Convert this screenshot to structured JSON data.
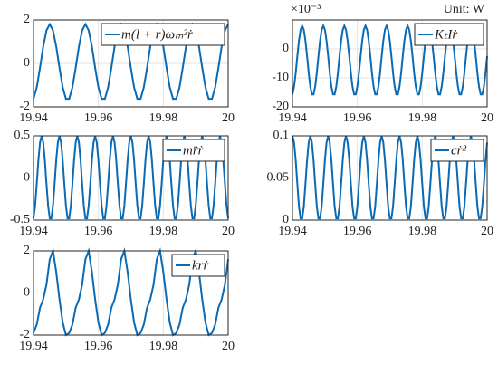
{
  "chart_data": [
    {
      "type": "line",
      "x": [
        19.94,
        19.941,
        19.942,
        19.943,
        19.944,
        19.945,
        19.946,
        19.947,
        19.948,
        19.949,
        19.95,
        19.951,
        19.952,
        19.953,
        19.954,
        19.955,
        19.956,
        19.957,
        19.958,
        19.959,
        19.96,
        19.961,
        19.962,
        19.963,
        19.964,
        19.965,
        19.966,
        19.967,
        19.968,
        19.969,
        19.97,
        19.971,
        19.972,
        19.973,
        19.974,
        19.975,
        19.976,
        19.977,
        19.978,
        19.979,
        19.98,
        19.981,
        19.982,
        19.983,
        19.984,
        19.985,
        19.986,
        19.987,
        19.988,
        19.989,
        19.99,
        19.991,
        19.992,
        19.993,
        19.994,
        19.995,
        19.996,
        19.997,
        19.998,
        19.999,
        20
      ],
      "series": [
        {
          "name": "m(l + r)ωₘ²ṙ",
          "color": "#0a6ab4",
          "values": [
            -1.63,
            -1.1,
            -0.2,
            0.78,
            1.52,
            1.8,
            1.52,
            0.78,
            -0.2,
            -1.1,
            -1.63,
            -1.63,
            -1.1,
            -0.2,
            0.78,
            1.52,
            1.8,
            1.52,
            0.78,
            -0.2,
            -1.1,
            -1.63,
            -1.63,
            -1.1,
            -0.2,
            0.78,
            1.52,
            1.8,
            1.52,
            0.78,
            -0.2,
            -1.1,
            -1.63,
            -1.63,
            -1.1,
            -0.2,
            0.78,
            1.52,
            1.8,
            1.52,
            0.78,
            -0.2,
            -1.1,
            -1.63,
            -1.63,
            -1.1,
            -0.2,
            0.78,
            1.52,
            1.8,
            1.52,
            0.78,
            -0.2,
            -1.1,
            -1.63,
            -1.63,
            -1.1,
            -0.2,
            0.78,
            1.52,
            1.8
          ]
        }
      ],
      "xlim": [
        19.94,
        20
      ],
      "xticks": [
        19.94,
        19.96,
        19.98,
        20
      ],
      "ylim": [
        -2,
        2
      ],
      "yticks": [
        -2,
        0,
        2
      ],
      "grid": true,
      "legend": "northeast"
    },
    {
      "type": "line",
      "x": [
        19.94,
        19.9405,
        19.941,
        19.9415,
        19.942,
        19.9425,
        19.943,
        19.9435,
        19.944,
        19.9445,
        19.945,
        19.9455,
        19.946,
        19.9465,
        19.947,
        19.9475,
        19.948,
        19.9485,
        19.949,
        19.9495,
        19.95,
        19.9505,
        19.951,
        19.9515,
        19.952,
        19.9525,
        19.953,
        19.9535,
        19.954,
        19.9545,
        19.955,
        19.9555,
        19.956,
        19.9565,
        19.957,
        19.9575,
        19.958,
        19.9585,
        19.959,
        19.9595,
        19.96,
        19.9605,
        19.961,
        19.9615,
        19.962,
        19.9625,
        19.963,
        19.9635,
        19.964,
        19.9645,
        19.965,
        19.9655,
        19.966,
        19.9665,
        19.967,
        19.9675,
        19.968,
        19.9685,
        19.969,
        19.9695,
        19.97,
        19.9705,
        19.971,
        19.9715,
        19.972,
        19.9725,
        19.973,
        19.9735,
        19.974,
        19.9745,
        19.975,
        19.9755,
        19.976,
        19.9765,
        19.977,
        19.9775,
        19.978,
        19.9785,
        19.979,
        19.9795,
        19.98,
        19.9805,
        19.981,
        19.9815,
        19.982,
        19.9825,
        19.983,
        19.9835,
        19.984,
        19.9845,
        19.985,
        19.9855,
        19.986,
        19.9865,
        19.987,
        19.9875,
        19.988,
        19.9885,
        19.989,
        19.9895,
        19.99,
        19.9905,
        19.991,
        19.9915,
        19.992,
        19.9925,
        19.993,
        19.9935,
        19.994,
        19.9945,
        19.995,
        19.9955,
        19.996,
        19.9965,
        19.997,
        19.9975,
        19.998,
        19.9985,
        19.999,
        19.9995,
        20
      ],
      "series": [
        {
          "name": "KₜIṙ",
          "color": "#0a6ab4",
          "values": [
            -15.7,
            -13,
            -8.3,
            -2.5,
            2.8,
            6.6,
            8,
            6.6,
            2.8,
            -2.5,
            -8.3,
            -13,
            -15.7,
            -15.7,
            -13,
            -8.3,
            -2.5,
            2.8,
            6.6,
            8,
            6.6,
            2.8,
            -2.5,
            -8.3,
            -13,
            -15.7,
            -15.7,
            -13,
            -8.3,
            -2.5,
            2.8,
            6.6,
            8,
            6.6,
            2.8,
            -2.5,
            -8.3,
            -13,
            -15.7,
            -15.7,
            -13,
            -8.3,
            -2.5,
            2.8,
            6.6,
            8,
            6.6,
            2.8,
            -2.5,
            -8.3,
            -13,
            -15.7,
            -15.7,
            -13,
            -8.3,
            -2.5,
            2.8,
            6.6,
            8,
            6.6,
            2.8,
            -2.5,
            -8.3,
            -13,
            -15.7,
            -15.7,
            -13,
            -8.3,
            -2.5,
            2.8,
            6.6,
            8,
            6.6,
            2.8,
            -2.5,
            -8.3,
            -13,
            -15.7,
            -15.7,
            -13,
            -8.3,
            -2.5,
            2.8,
            6.6,
            8,
            6.6,
            2.8,
            -2.5,
            -8.3,
            -13,
            -15.7,
            -15.7,
            -13,
            -8.3,
            -2.5,
            2.8,
            6.6,
            8,
            6.6,
            2.8,
            -2.5,
            -8.3,
            -13,
            -15.7,
            -15.7,
            -13,
            -8.3,
            -2.5,
            2.8,
            6.6,
            8,
            6.6,
            2.8,
            -2.5,
            -8.3,
            -13,
            -15.7,
            -15.7,
            -13,
            -8.3,
            -2.5
          ]
        }
      ],
      "xlim": [
        19.94,
        20
      ],
      "xticks": [
        19.94,
        19.96,
        19.98,
        20
      ],
      "ylim": [
        -20,
        10
      ],
      "yticks": [
        -20,
        -10,
        0
      ],
      "y_multiplier": "×10⁻³",
      "annotation": "Unit: W",
      "grid": true,
      "legend": "northeast"
    },
    {
      "type": "line",
      "x": [
        19.94,
        19.9405,
        19.941,
        19.9415,
        19.942,
        19.9425,
        19.943,
        19.9435,
        19.944,
        19.9445,
        19.945,
        19.9455,
        19.946,
        19.9465,
        19.947,
        19.9475,
        19.948,
        19.9485,
        19.949,
        19.9495,
        19.95,
        19.9505,
        19.951,
        19.9515,
        19.952,
        19.9525,
        19.953,
        19.9535,
        19.954,
        19.9545,
        19.955,
        19.9555,
        19.956,
        19.9565,
        19.957,
        19.9575,
        19.958,
        19.9585,
        19.959,
        19.9595,
        19.96,
        19.9605,
        19.961,
        19.9615,
        19.962,
        19.9625,
        19.963,
        19.9635,
        19.964,
        19.9645,
        19.965,
        19.9655,
        19.966,
        19.9665,
        19.967,
        19.9675,
        19.968,
        19.9685,
        19.969,
        19.9695,
        19.97,
        19.9705,
        19.971,
        19.9715,
        19.972,
        19.9725,
        19.973,
        19.9735,
        19.974,
        19.9745,
        19.975,
        19.9755,
        19.976,
        19.9765,
        19.977,
        19.9775,
        19.978,
        19.9785,
        19.979,
        19.9795,
        19.98,
        19.9805,
        19.981,
        19.9815,
        19.982,
        19.9825,
        19.983,
        19.9835,
        19.984,
        19.9845,
        19.985,
        19.9855,
        19.986,
        19.9865,
        19.987,
        19.9875,
        19.988,
        19.9885,
        19.989,
        19.9895,
        19.99,
        19.9905,
        19.991,
        19.9915,
        19.992,
        19.9925,
        19.993,
        19.9935,
        19.994,
        19.9945,
        19.995,
        19.9955,
        19.996,
        19.9965,
        19.997,
        19.9975,
        19.998,
        19.9985,
        19.999,
        19.9995,
        20
      ],
      "series": [
        {
          "name": "mr̈ṙ",
          "color": "#0a6ab4",
          "values": [
            -0.48,
            -0.33,
            -0.07,
            0.21,
            0.42,
            0.5,
            0.42,
            0.21,
            -0.07,
            -0.33,
            -0.48,
            -0.48,
            -0.33,
            -0.07,
            0.21,
            0.42,
            0.5,
            0.42,
            0.21,
            -0.07,
            -0.33,
            -0.48,
            -0.48,
            -0.33,
            -0.07,
            0.21,
            0.42,
            0.5,
            0.42,
            0.21,
            -0.07,
            -0.33,
            -0.48,
            -0.48,
            -0.33,
            -0.07,
            0.21,
            0.42,
            0.5,
            0.42,
            0.21,
            -0.07,
            -0.33,
            -0.48,
            -0.48,
            -0.33,
            -0.07,
            0.21,
            0.42,
            0.5,
            0.42,
            0.21,
            -0.07,
            -0.33,
            -0.48,
            -0.48,
            -0.33,
            -0.07,
            0.21,
            0.42,
            0.5,
            0.42,
            0.21,
            -0.07,
            -0.33,
            -0.48,
            -0.48,
            -0.33,
            -0.07,
            0.21,
            0.42,
            0.5,
            0.42,
            0.21,
            -0.07,
            -0.33,
            -0.48,
            -0.48,
            -0.33,
            -0.07,
            0.21,
            0.42,
            0.5,
            0.42,
            0.21,
            -0.07,
            -0.33,
            -0.48,
            -0.48,
            -0.33,
            -0.07,
            0.21,
            0.42,
            0.5,
            0.42,
            0.21,
            -0.07,
            -0.33,
            -0.48,
            -0.48,
            -0.33,
            -0.07,
            0.21,
            0.42,
            0.5,
            0.42,
            0.21,
            -0.07,
            -0.33,
            -0.48,
            -0.48,
            -0.33,
            -0.07,
            0.21,
            0.42,
            0.5,
            0.42,
            0.21,
            -0.07,
            -0.33,
            -0.48
          ]
        }
      ],
      "xlim": [
        19.94,
        20
      ],
      "xticks": [
        19.94,
        19.96,
        19.98,
        20
      ],
      "ylim": [
        -0.5,
        0.5
      ],
      "yticks": [
        -0.5,
        0,
        0.5
      ],
      "grid": true,
      "legend": "northeast"
    },
    {
      "type": "line",
      "x": [
        19.94,
        19.9405,
        19.941,
        19.9415,
        19.942,
        19.9425,
        19.943,
        19.9435,
        19.944,
        19.9445,
        19.945,
        19.9455,
        19.946,
        19.9465,
        19.947,
        19.9475,
        19.948,
        19.9485,
        19.949,
        19.9495,
        19.95,
        19.9505,
        19.951,
        19.9515,
        19.952,
        19.9525,
        19.953,
        19.9535,
        19.954,
        19.9545,
        19.955,
        19.9555,
        19.956,
        19.9565,
        19.957,
        19.9575,
        19.958,
        19.9585,
        19.959,
        19.9595,
        19.96,
        19.9605,
        19.961,
        19.9615,
        19.962,
        19.9625,
        19.963,
        19.9635,
        19.964,
        19.9645,
        19.965,
        19.9655,
        19.966,
        19.9665,
        19.967,
        19.9675,
        19.968,
        19.9685,
        19.969,
        19.9695,
        19.97,
        19.9705,
        19.971,
        19.9715,
        19.972,
        19.9725,
        19.973,
        19.9735,
        19.974,
        19.9745,
        19.975,
        19.9755,
        19.976,
        19.9765,
        19.977,
        19.9775,
        19.978,
        19.9785,
        19.979,
        19.9795,
        19.98,
        19.9805,
        19.981,
        19.9815,
        19.982,
        19.9825,
        19.983,
        19.9835,
        19.984,
        19.9845,
        19.985,
        19.9855,
        19.986,
        19.9865,
        19.987,
        19.9875,
        19.988,
        19.9885,
        19.989,
        19.9895,
        19.99,
        19.9905,
        19.991,
        19.9915,
        19.992,
        19.9925,
        19.993,
        19.9935,
        19.994,
        19.9945,
        19.995,
        19.9955,
        19.996,
        19.9965,
        19.997,
        19.9975,
        19.998,
        19.9985,
        19.999,
        19.9995,
        20
      ],
      "series": [
        {
          "name": "cṙ²",
          "color": "#0a6ab4",
          "values": [
            0.1,
            0.092,
            0.071,
            0.043,
            0.016,
            0.002,
            0.002,
            0.016,
            0.043,
            0.071,
            0.092,
            0.1,
            0.092,
            0.071,
            0.043,
            0.016,
            0.002,
            0.002,
            0.016,
            0.043,
            0.071,
            0.092,
            0.1,
            0.092,
            0.071,
            0.043,
            0.016,
            0.002,
            0.002,
            0.016,
            0.043,
            0.071,
            0.092,
            0.1,
            0.092,
            0.071,
            0.043,
            0.016,
            0.002,
            0.002,
            0.016,
            0.043,
            0.071,
            0.092,
            0.1,
            0.092,
            0.071,
            0.043,
            0.016,
            0.002,
            0.002,
            0.016,
            0.043,
            0.071,
            0.092,
            0.1,
            0.092,
            0.071,
            0.043,
            0.016,
            0.002,
            0.002,
            0.016,
            0.043,
            0.071,
            0.092,
            0.1,
            0.092,
            0.071,
            0.043,
            0.016,
            0.002,
            0.002,
            0.016,
            0.043,
            0.071,
            0.092,
            0.1,
            0.092,
            0.071,
            0.043,
            0.016,
            0.002,
            0.002,
            0.016,
            0.043,
            0.071,
            0.092,
            0.1,
            0.092,
            0.071,
            0.043,
            0.016,
            0.002,
            0.002,
            0.016,
            0.043,
            0.071,
            0.092,
            0.1,
            0.092,
            0.071,
            0.043,
            0.016,
            0.002,
            0.002,
            0.016,
            0.043,
            0.071,
            0.092,
            0.1,
            0.092,
            0.071,
            0.043,
            0.016,
            0.002,
            0.002,
            0.016,
            0.043,
            0.071,
            0.092
          ]
        }
      ],
      "xlim": [
        19.94,
        20
      ],
      "xticks": [
        19.94,
        19.96,
        19.98,
        20
      ],
      "ylim": [
        0,
        0.1
      ],
      "yticks": [
        0,
        0.05,
        0.1
      ],
      "grid": true,
      "legend": "northeast"
    },
    {
      "type": "line",
      "x": [
        19.94,
        19.941,
        19.942,
        19.943,
        19.944,
        19.945,
        19.946,
        19.947,
        19.948,
        19.949,
        19.95,
        19.951,
        19.952,
        19.953,
        19.954,
        19.955,
        19.956,
        19.957,
        19.958,
        19.959,
        19.96,
        19.961,
        19.962,
        19.963,
        19.964,
        19.965,
        19.966,
        19.967,
        19.968,
        19.969,
        19.97,
        19.971,
        19.972,
        19.973,
        19.974,
        19.975,
        19.976,
        19.977,
        19.978,
        19.979,
        19.98,
        19.981,
        19.982,
        19.983,
        19.984,
        19.985,
        19.986,
        19.987,
        19.988,
        19.989,
        19.99,
        19.991,
        19.992,
        19.993,
        19.994,
        19.995,
        19.996,
        19.997,
        19.998,
        19.999,
        20
      ],
      "series": [
        {
          "name": "krṙ",
          "color": "#0a6ab4",
          "values": [
            -1.9,
            -1.5,
            -0.7,
            -0.3,
            0.4,
            1.6,
            2,
            1,
            -0.3,
            -1.4,
            -2,
            -1.9,
            -1.5,
            -0.7,
            -0.3,
            0.4,
            1.6,
            2,
            1,
            -0.3,
            -1.4,
            -2,
            -1.9,
            -1.5,
            -0.7,
            -0.3,
            0.4,
            1.6,
            2,
            1,
            -0.3,
            -1.4,
            -2,
            -1.9,
            -1.5,
            -0.7,
            -0.3,
            0.4,
            1.6,
            2,
            1,
            -0.3,
            -1.4,
            -2,
            -1.9,
            -1.5,
            -0.7,
            -0.3,
            0.4,
            1.6,
            2,
            1,
            -0.3,
            -1.4,
            -2,
            -1.9,
            -1.5,
            -0.7,
            -0.3,
            0.4,
            1.6
          ]
        }
      ],
      "xlim": [
        19.94,
        20
      ],
      "xticks": [
        19.94,
        19.96,
        19.98,
        20
      ],
      "ylim": [
        -2,
        2
      ],
      "yticks": [
        -2,
        0,
        2
      ],
      "grid": true,
      "legend": "northeast"
    }
  ]
}
